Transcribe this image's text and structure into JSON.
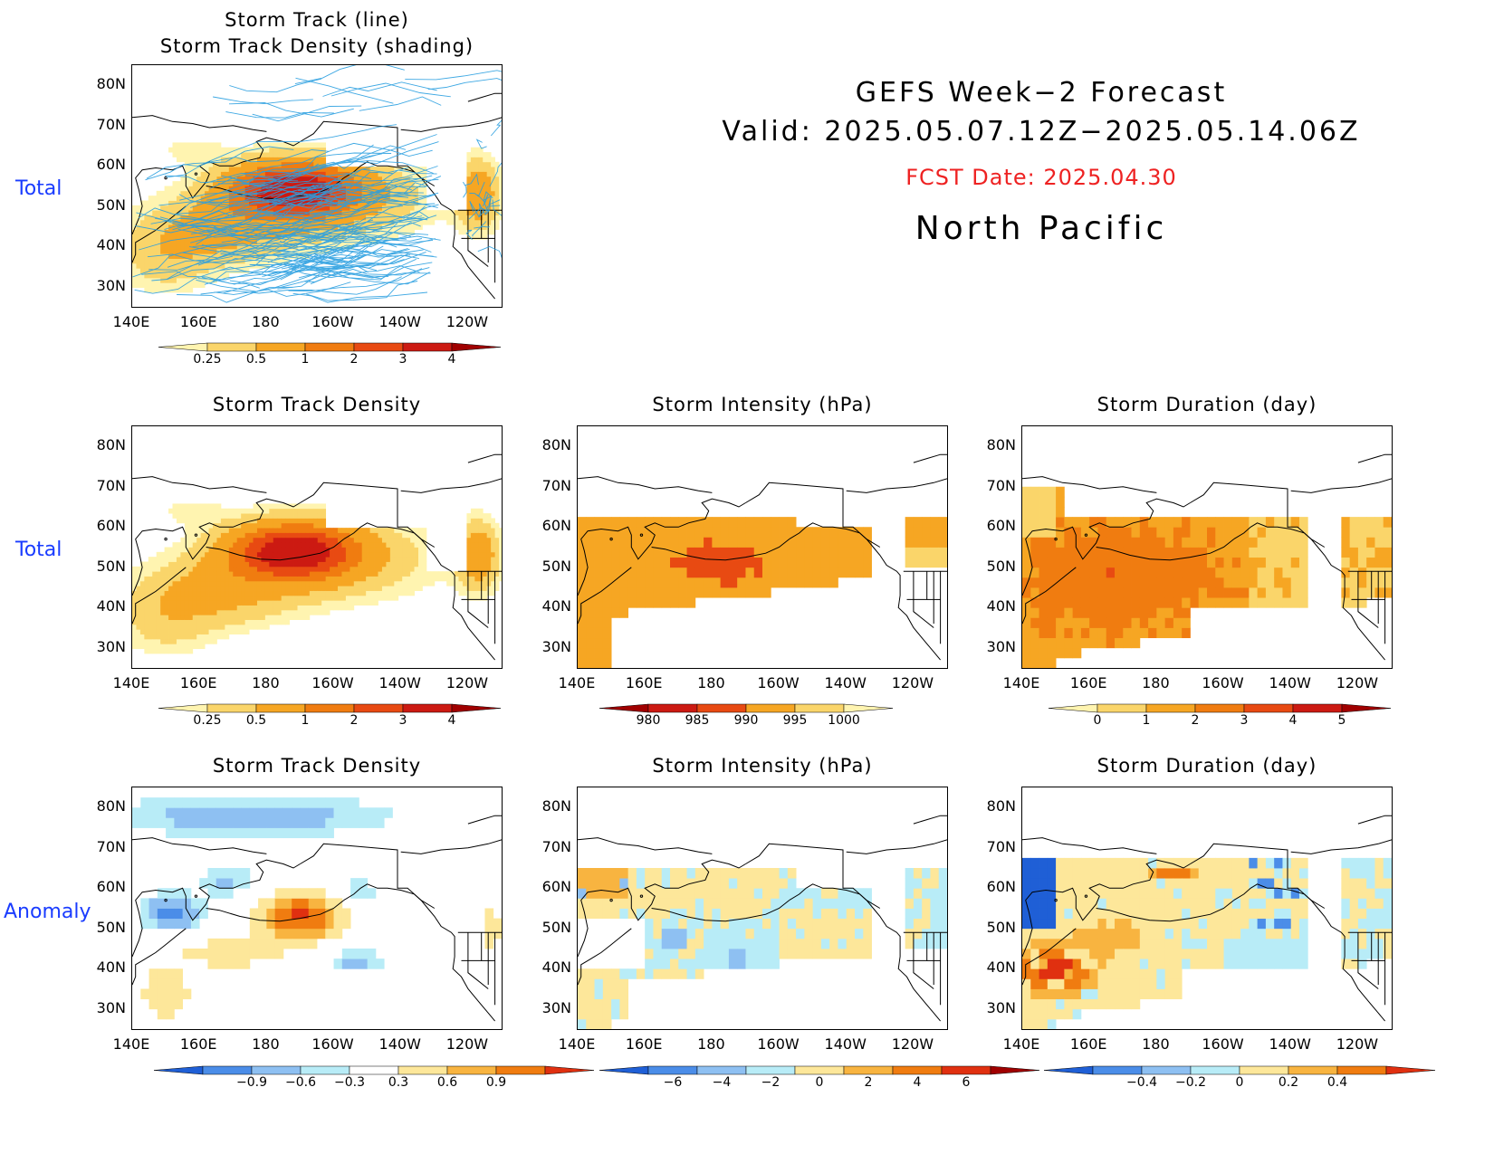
{
  "header": {
    "line1": "GEFS Week−2 Forecast",
    "line2": "Valid: 2025.05.07.12Z−2025.05.14.06Z",
    "fcst": "FCST Date: 2025.04.30",
    "region": "North Pacific"
  },
  "row_labels": {
    "top": "Total",
    "mid": "Total",
    "bottom": "Anomaly"
  },
  "lat_ticks": [
    "80N",
    "70N",
    "60N",
    "50N",
    "40N",
    "30N"
  ],
  "lon_ticks": [
    "140E",
    "160E",
    "180",
    "160W",
    "140W",
    "120W"
  ],
  "panels": {
    "top": {
      "title1": "Storm Track (line)",
      "title2": "Storm Track Density (shading)"
    },
    "mid_density": {
      "title": "Storm Track Density"
    },
    "mid_intensity": {
      "title": "Storm Intensity (hPa)"
    },
    "mid_duration": {
      "title": "Storm Duration (day)"
    },
    "anom_density": {
      "title": "Storm Track Density"
    },
    "anom_intensity": {
      "title": "Storm Intensity (hPa)"
    },
    "anom_duration": {
      "title": "Storm Duration (day)"
    }
  },
  "colorbars": {
    "density": {
      "labels": [
        "0.25",
        "0.5",
        "1",
        "2",
        "3",
        "4"
      ],
      "colors": [
        "#fff4b0",
        "#fad56a",
        "#f6a623",
        "#f07c10",
        "#e84a12",
        "#cc1a12",
        "#a00000"
      ]
    },
    "intensity": {
      "labels": [
        "980",
        "985",
        "990",
        "995",
        "1000"
      ],
      "colors": [
        "#a00000",
        "#cc1a12",
        "#e84a12",
        "#f6a623",
        "#fad56a",
        "#fff4b0"
      ]
    },
    "duration": {
      "labels": [
        "0",
        "1",
        "2",
        "3",
        "4",
        "5"
      ],
      "colors": [
        "#fff4b0",
        "#fad56a",
        "#f6a623",
        "#f07c10",
        "#e84a12",
        "#cc1a12",
        "#a00000"
      ]
    },
    "anom_density": {
      "labels": [
        "−0.9",
        "−0.6",
        "−0.3",
        "0.3",
        "0.6",
        "0.9"
      ],
      "colors": [
        "#1f5fd6",
        "#4b8de8",
        "#8ec0f2",
        "#b8ecf7",
        "#ffffff",
        "#fde79a",
        "#f8b440",
        "#f07c10",
        "#e03010"
      ]
    },
    "anom_intensity": {
      "labels": [
        "−6",
        "−4",
        "−2",
        "0",
        "2",
        "4",
        "6"
      ],
      "colors": [
        "#1f5fd6",
        "#4b8de8",
        "#8ec0f2",
        "#b8ecf7",
        "#fde79a",
        "#f8b440",
        "#f07c10",
        "#e03010",
        "#a00000"
      ]
    },
    "anom_duration": {
      "labels": [
        "−0.4",
        "−0.2",
        "0",
        "0.2",
        "0.4"
      ],
      "colors": [
        "#1f5fd6",
        "#4b8de8",
        "#8ec0f2",
        "#b8ecf7",
        "#fde79a",
        "#f8b440",
        "#f07c10",
        "#e03010"
      ]
    }
  },
  "palette": {
    "track_line": "#2a9fe0",
    "coast": "#000000",
    "row_label": "#1a3cff",
    "fcst_color": "#ee2222"
  }
}
